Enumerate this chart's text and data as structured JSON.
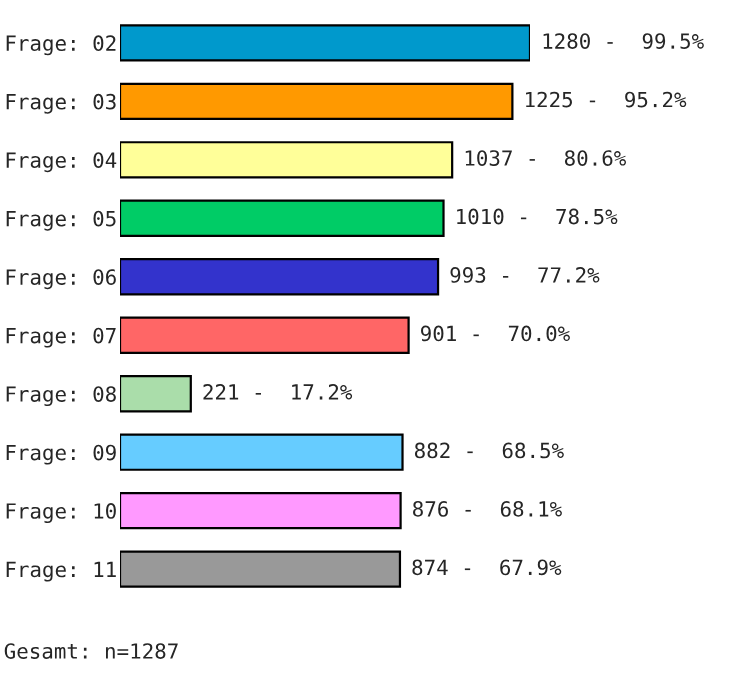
{
  "chart_data": {
    "type": "bar",
    "orientation": "horizontal",
    "categories": [
      "Frage: 02",
      "Frage: 03",
      "Frage: 04",
      "Frage: 05",
      "Frage: 06",
      "Frage: 07",
      "Frage: 08",
      "Frage: 09",
      "Frage: 10",
      "Frage: 11"
    ],
    "values": [
      1280,
      1225,
      1037,
      1010,
      993,
      901,
      221,
      882,
      876,
      874
    ],
    "colors": [
      "#0099cc",
      "#ff9900",
      "#ffff99",
      "#00cc66",
      "#3333cc",
      "#ff6666",
      "#aaddaa",
      "#66ccff",
      "#ff99ff",
      "#999999"
    ],
    "value_labels": [
      "1280 -  99.5%",
      "1225 -  95.2%",
      "1037 -  80.6%",
      "1010 -  78.5%",
      "993 -  77.2%",
      "901 -  70.0%",
      "221 -  17.2%",
      "882 -  68.5%",
      "876 -  68.1%",
      "874 -  67.9%"
    ],
    "annotations": [
      "Gesamt: n=1287"
    ],
    "grid": false,
    "legend": false
  }
}
